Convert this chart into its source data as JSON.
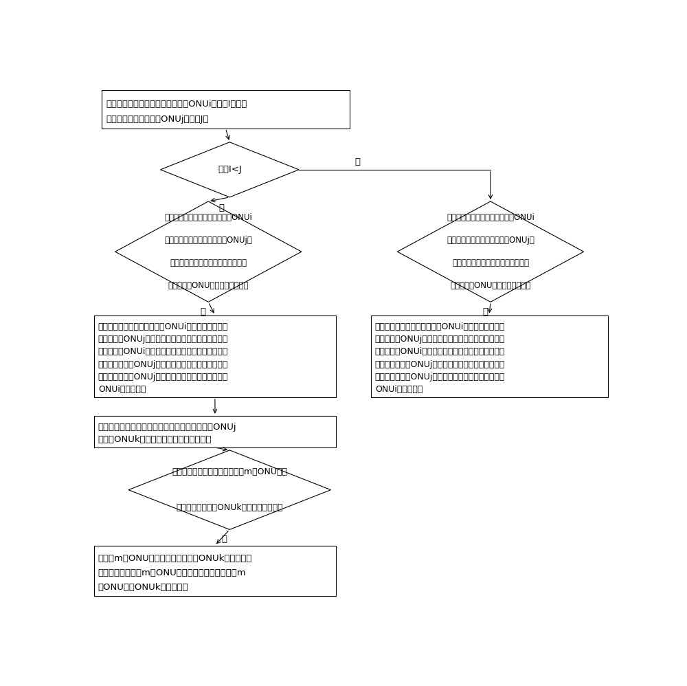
{
  "bg_color": "#ffffff",
  "line_color": "#000000",
  "text_color": "#000000",
  "font_size": 9.5,
  "start_box": {
    "text_l1": "分别确定所述第一类型网络单元中ONU",
    "text_l1_sub": "i",
    "text_l1_end": "的数量I以及所",
    "text_l2": "述第二类型网络单元中ONU",
    "text_l2_sub": "j",
    "text_l2_end": "的数量J；"
  },
  "d1_text": "判断I<J",
  "d2l_lines": [
    "判断所述第一类型网络单元中的ONUi",
    "和所述第二类型网络单元中的ONUj所",
    "占频带之和是否超过所述第一类型网",
    "络单元中的ONU所占子载波频带；"
  ],
  "d2r_lines": [
    "判断所述第一类型网络单元中的ONUi",
    "和所述第二类型网络单元中的ONUj所",
    "占频带之和是否超过所述第一类型网",
    "络单元中的ONU所占子载波频带；"
  ],
  "rl_lines": [
    "当所述第一类型网络单元中的ONUi和所述第二类型网",
    "络单元中的ONUj所占频带之和未超过所述第一类型网",
    "络单元中的ONUi所占子载波频带时，调整所述第二类",
    "型网络单元中的ONUj所占用的子载波，使所述第二类",
    "型网络单元中的ONUj共用所述第一类型网络单元中的",
    "ONUi的子载波。"
  ],
  "rr_lines": [
    "当所述第一类型网络单元中的ONUi和所述第二类型网",
    "络单元中的ONUj所占频带之和未超过所述第一类型网",
    "络单元中的ONUi所占子载波频带时，调整所述第二类",
    "型网络单元中的ONUj所占用的子载波，使所述第二类",
    "型网络单元中的ONUj共用所述第一类型网络单元中的",
    "ONUi的子载波。"
  ],
  "rm_lines": [
    "将所述第二类型网络单元中的未被调整子载波的ONUj",
    "确定为ONUk，并组成第三类型网络单元；"
  ],
  "d3_lines": [
    "判断所述第三类型网络单元中的m个ONU所占",
    "频带之和是否超过ONUk所占子载波频带；"
  ],
  "rb_lines": [
    "当所述m个ONU所占频带之和未超过ONUk所占子载波",
    "频带时，调整所述m个ONU所占用的子载波，使所述m",
    "个ONU共用ONUk的子载波。"
  ],
  "label_yes": "是",
  "label_no": "否"
}
